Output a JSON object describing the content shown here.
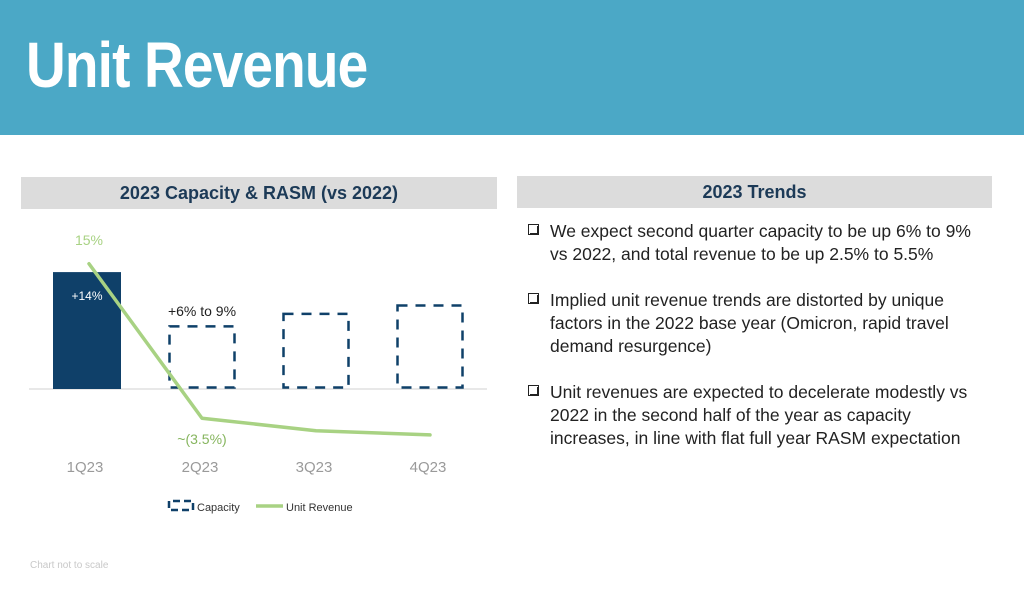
{
  "header": {
    "title": "Unit Revenue",
    "bg_color": "#4ba8c6"
  },
  "left_panel": {
    "heading": "2023 Capacity & RASM (vs 2022)"
  },
  "right_panel": {
    "heading": "2023 Trends",
    "bullets": [
      "We expect second quarter capacity to be up 6% to 9% vs 2022, and total revenue to be up 2.5% to 5.5%",
      "Implied unit revenue trends are distorted by unique factors in the 2022 base year (Omicron, rapid travel demand resurgence)",
      "Unit revenues are expected to decelerate modestly vs 2022 in the second half of the year as capacity increases, in line with flat full year RASM expectation"
    ]
  },
  "footnote": "Chart not to scale",
  "chart_data": {
    "type": "bar",
    "categories": [
      "1Q23",
      "2Q23",
      "3Q23",
      "4Q23"
    ],
    "series": [
      {
        "name": "Capacity",
        "values": [
          14,
          7.5,
          9,
          10
        ],
        "style": "solid-first-then-dashed",
        "color": "#0f4069",
        "labels": [
          "+14%",
          "+6% to 9%",
          "",
          ""
        ]
      },
      {
        "name": "Unit Revenue",
        "values": [
          15,
          -3.5,
          -5,
          -5.5
        ],
        "style": "line",
        "color": "#a8d283",
        "labels": [
          "15%",
          "~(3.5%)",
          "",
          ""
        ]
      }
    ],
    "colors": {
      "capacity": "#0f4069",
      "unit_revenue": "#a8d283",
      "axis_labels": "#9a9a9a"
    },
    "legend": {
      "placement": "bottom-center",
      "items": [
        "Capacity",
        "Unit Revenue"
      ]
    },
    "grid": false
  }
}
